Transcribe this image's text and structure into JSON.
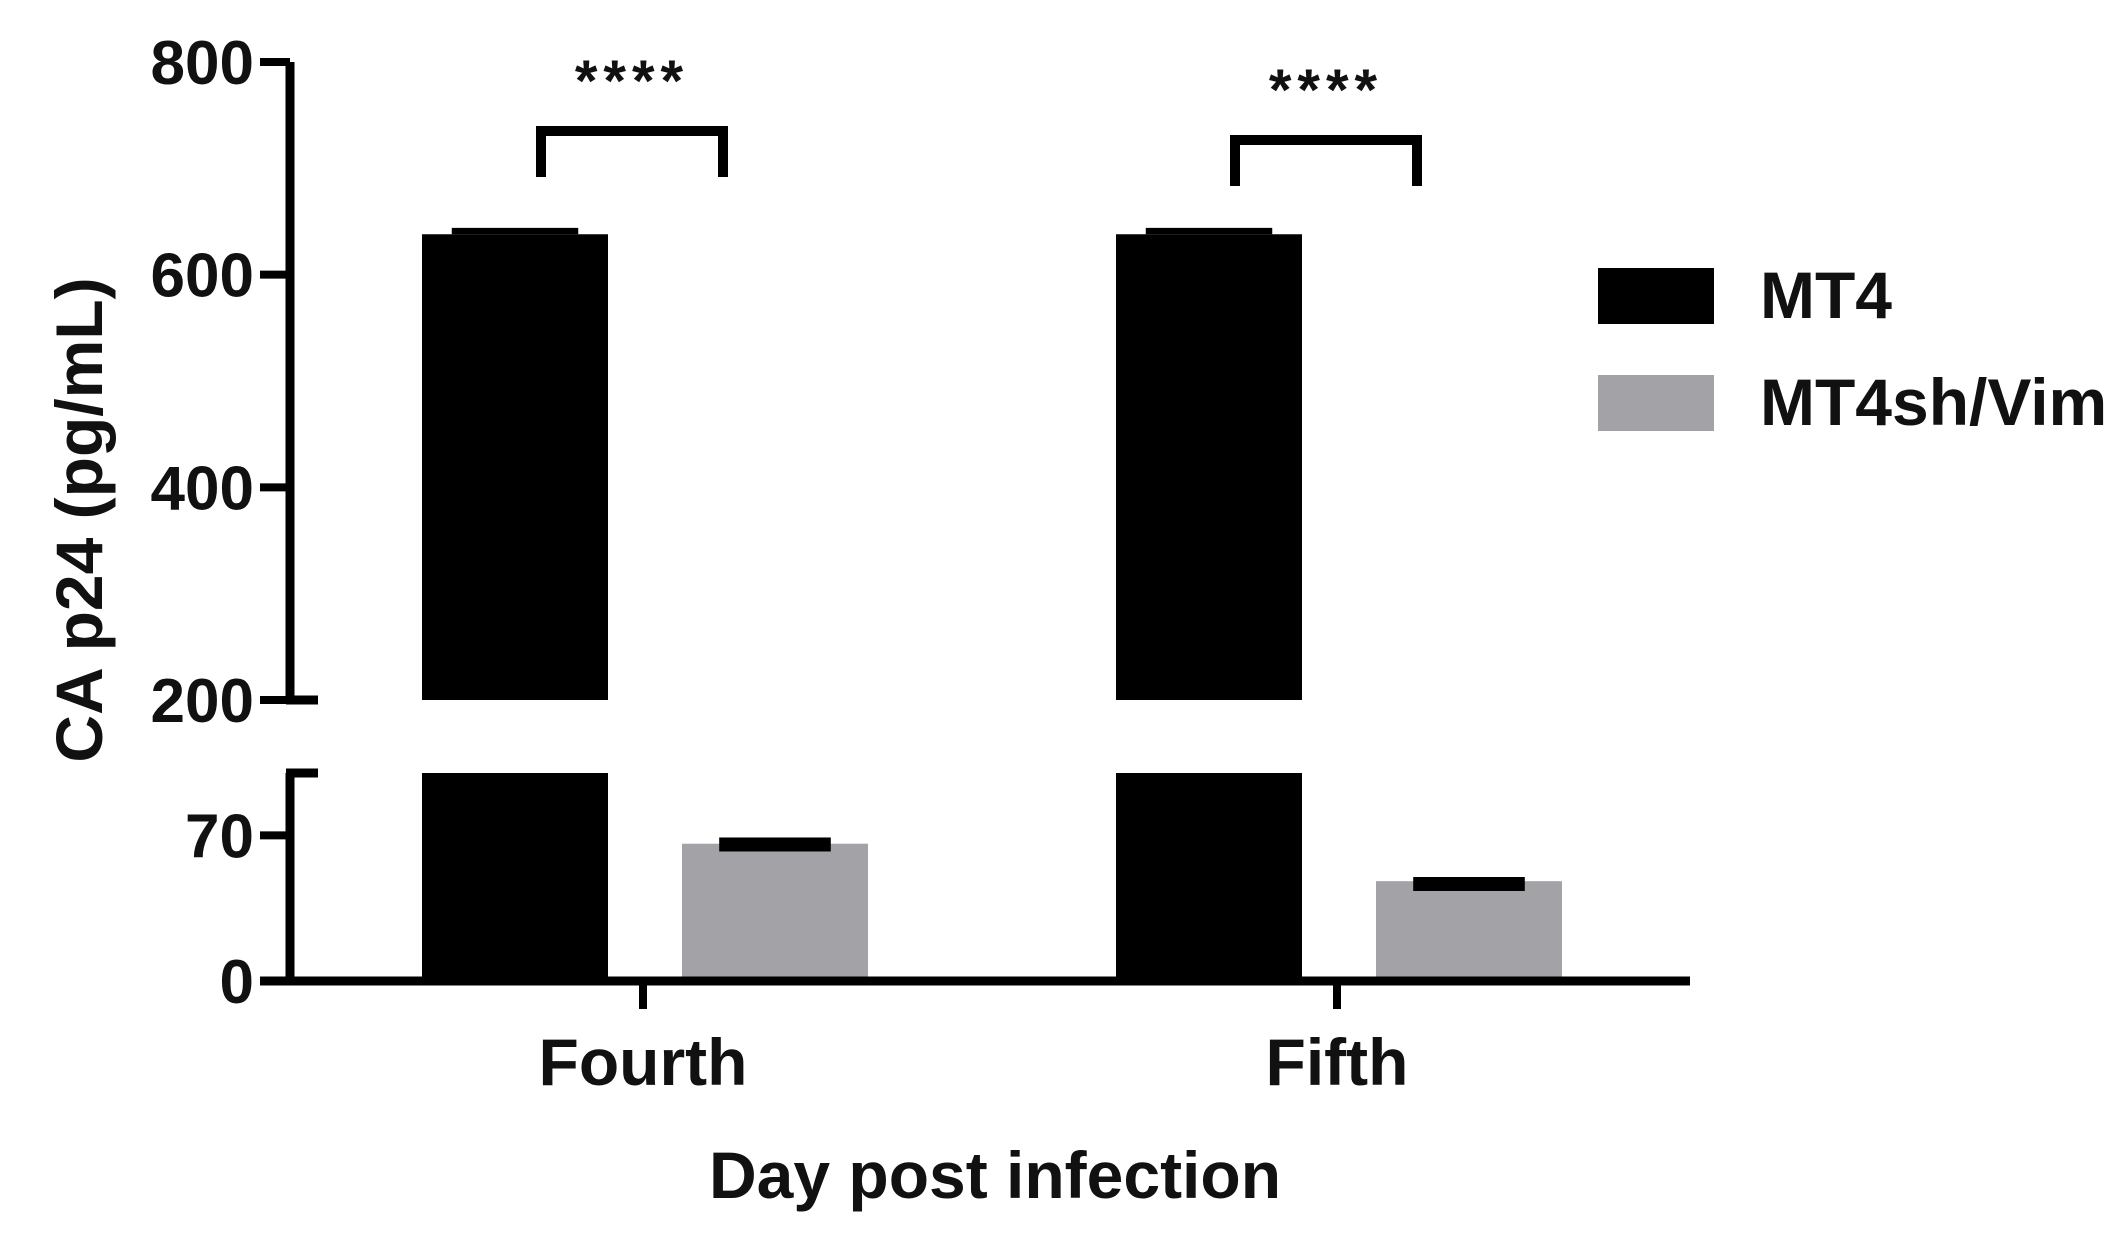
{
  "chart_data": {
    "type": "bar",
    "xlabel": "Day post infection",
    "ylabel": "CA p24 (pg/mL)",
    "categories": [
      "Fourth",
      "Fifth"
    ],
    "series": [
      {
        "name": "MT4",
        "color": "#000000",
        "values": [
          638,
          638
        ],
        "errors": [
          6,
          6
        ]
      },
      {
        "name": "MT4sh/Vim",
        "color": "#a3a3a7",
        "values": [
          66,
          48
        ],
        "errors": [
          3,
          2
        ]
      }
    ],
    "y_axis": {
      "broken": true,
      "lower_segment": {
        "range": [
          0,
          100
        ],
        "ticks": [
          0,
          70
        ]
      },
      "upper_segment": {
        "range": [
          200,
          800
        ],
        "ticks": [
          200,
          400,
          600,
          800
        ]
      }
    },
    "significance": [
      {
        "category": "Fourth",
        "label": "****"
      },
      {
        "category": "Fifth",
        "label": "****"
      }
    ],
    "legend_position": "right",
    "grid": false
  }
}
